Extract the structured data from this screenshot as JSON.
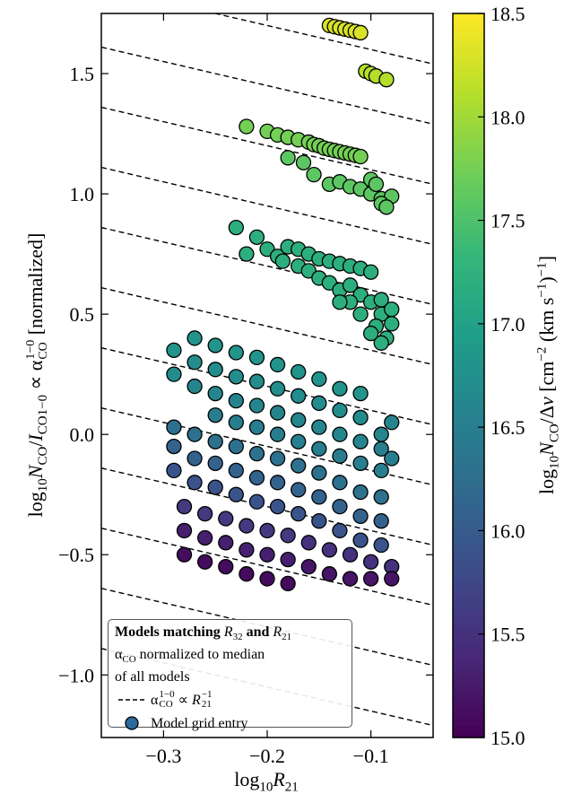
{
  "chart_data": {
    "type": "scatter",
    "xlabel": [
      "log",
      "10",
      "R",
      "21"
    ],
    "ylabel": [
      "log",
      "10",
      "N",
      "CO",
      "/",
      "I",
      "CO1−0",
      " ∝ ",
      "α",
      "1−0",
      "CO",
      " [normalized]"
    ],
    "colorbar_label": [
      "log",
      "10",
      "N",
      "CO",
      "/Δ",
      "v",
      " [cm",
      "−2",
      " (km s",
      "−1",
      ")",
      "−1",
      "]"
    ],
    "xlim": [
      -0.36,
      -0.04
    ],
    "ylim": [
      -1.26,
      1.75
    ],
    "xticks": [
      {
        "value": -0.3,
        "label": "−0.3"
      },
      {
        "value": -0.2,
        "label": "−0.2"
      },
      {
        "value": -0.1,
        "label": "−0.1"
      }
    ],
    "yticks": [
      {
        "value": -1.0,
        "label": "−1.0"
      },
      {
        "value": -0.5,
        "label": "−0.5"
      },
      {
        "value": 0.0,
        "label": "0.0"
      },
      0.5,
      {
        "value": 1.0,
        "label": "1.0"
      },
      1.5
    ],
    "clim": [
      15.0,
      18.5
    ],
    "cticks": [
      {
        "value": 15.0,
        "label": "15.0"
      },
      15.5,
      {
        "value": 16.0,
        "label": "16.0"
      },
      16.5,
      {
        "value": 17.0,
        "label": "17.0"
      },
      17.5,
      {
        "value": 18.0,
        "label": "18.0"
      },
      18.5
    ],
    "colormap": "viridis",
    "reference_lines": {
      "slope": -1,
      "intercepts": [
        1.5,
        1.25,
        1.0,
        0.75,
        0.5,
        0.25,
        0.0,
        -0.25,
        -0.5,
        -0.75,
        -1.0,
        -1.25
      ]
    },
    "legend": {
      "title": [
        "Models matching ",
        "R",
        "32",
        " and ",
        "R",
        "21"
      ],
      "note": [
        "α",
        "CO",
        " normalized to median",
        "of all models"
      ],
      "line_entry": [
        "α",
        "1−0",
        "CO",
        " ∝ ",
        "R",
        "21",
        "−1"
      ],
      "marker_entry": "Model grid entry",
      "marker_color": "#2b6a9c",
      "loc": "lower left"
    },
    "x": [
      -0.14,
      -0.135,
      -0.13,
      -0.125,
      -0.12,
      -0.115,
      -0.11,
      -0.105,
      -0.1,
      -0.095,
      -0.085,
      -0.22,
      -0.2,
      -0.19,
      -0.18,
      -0.17,
      -0.16,
      -0.155,
      -0.15,
      -0.145,
      -0.14,
      -0.135,
      -0.13,
      -0.125,
      -0.12,
      -0.115,
      -0.11,
      -0.18,
      -0.165,
      -0.155,
      -0.14,
      -0.13,
      -0.12,
      -0.11,
      -0.1,
      -0.09,
      -0.08,
      -0.09,
      -0.085,
      -0.1,
      -0.095,
      -0.23,
      -0.21,
      -0.22,
      -0.2,
      -0.19,
      -0.18,
      -0.17,
      -0.16,
      -0.15,
      -0.14,
      -0.13,
      -0.12,
      -0.11,
      -0.1,
      -0.185,
      -0.17,
      -0.16,
      -0.15,
      -0.14,
      -0.13,
      -0.12,
      -0.11,
      -0.1,
      -0.09,
      -0.095,
      -0.085,
      -0.09,
      -0.1,
      -0.11,
      -0.12,
      -0.08,
      -0.13,
      -0.09,
      -0.08,
      -0.29,
      -0.29,
      -0.27,
      -0.27,
      -0.27,
      -0.25,
      -0.25,
      -0.25,
      -0.25,
      -0.23,
      -0.23,
      -0.23,
      -0.23,
      -0.21,
      -0.21,
      -0.21,
      -0.21,
      -0.19,
      -0.19,
      -0.19,
      -0.19,
      -0.17,
      -0.17,
      -0.17,
      -0.17,
      -0.15,
      -0.15,
      -0.15,
      -0.15,
      -0.13,
      -0.13,
      -0.13,
      -0.13,
      -0.11,
      -0.11,
      -0.11,
      -0.11,
      -0.09,
      -0.09,
      -0.09,
      -0.08,
      -0.08,
      -0.29,
      -0.29,
      -0.29,
      -0.27,
      -0.27,
      -0.27,
      -0.25,
      -0.25,
      -0.25,
      -0.23,
      -0.23,
      -0.23,
      -0.21,
      -0.21,
      -0.21,
      -0.19,
      -0.19,
      -0.19,
      -0.17,
      -0.17,
      -0.17,
      -0.15,
      -0.15,
      -0.15,
      -0.13,
      -0.13,
      -0.13,
      -0.11,
      -0.11,
      -0.11,
      -0.09,
      -0.09,
      -0.09,
      -0.28,
      -0.28,
      -0.28,
      -0.26,
      -0.26,
      -0.26,
      -0.24,
      -0.24,
      -0.24,
      -0.22,
      -0.22,
      -0.22,
      -0.2,
      -0.2,
      -0.2,
      -0.18,
      -0.18,
      -0.18,
      -0.16,
      -0.16,
      -0.14,
      -0.14,
      -0.12,
      -0.12,
      -0.1,
      -0.1,
      -0.08,
      -0.08
    ],
    "y": [
      1.7,
      1.695,
      1.69,
      1.685,
      1.68,
      1.675,
      1.67,
      1.51,
      1.5,
      1.49,
      1.475,
      1.28,
      1.26,
      1.245,
      1.235,
      1.225,
      1.215,
      1.205,
      1.2,
      1.19,
      1.185,
      1.18,
      1.175,
      1.17,
      1.165,
      1.16,
      1.155,
      1.15,
      1.13,
      1.08,
      1.04,
      1.05,
      1.03,
      1.02,
      1.0,
      0.98,
      0.99,
      0.96,
      0.945,
      1.06,
      1.04,
      0.86,
      0.82,
      0.75,
      0.77,
      0.74,
      0.78,
      0.77,
      0.75,
      0.73,
      0.72,
      0.71,
      0.7,
      0.69,
      0.675,
      0.72,
      0.7,
      0.68,
      0.65,
      0.63,
      0.6,
      0.62,
      0.58,
      0.55,
      0.5,
      0.45,
      0.4,
      0.38,
      0.42,
      0.5,
      0.55,
      0.46,
      0.55,
      0.56,
      0.52,
      0.35,
      0.25,
      0.4,
      0.3,
      0.2,
      0.37,
      0.27,
      0.17,
      0.08,
      0.34,
      0.24,
      0.14,
      0.05,
      0.32,
      0.22,
      0.12,
      0.03,
      0.29,
      0.19,
      0.09,
      0.0,
      0.26,
      0.16,
      0.06,
      -0.03,
      0.23,
      0.13,
      0.03,
      -0.06,
      0.19,
      0.1,
      0.0,
      -0.09,
      0.17,
      0.07,
      -0.03,
      -0.12,
      0.0,
      -0.06,
      -0.15,
      0.05,
      -0.1,
      0.03,
      -0.05,
      -0.15,
      0.0,
      -0.1,
      -0.2,
      -0.03,
      -0.12,
      -0.22,
      -0.05,
      -0.15,
      -0.25,
      -0.08,
      -0.18,
      -0.28,
      -0.1,
      -0.2,
      -0.3,
      -0.13,
      -0.23,
      -0.33,
      -0.16,
      -0.26,
      -0.36,
      -0.2,
      -0.3,
      -0.4,
      -0.24,
      -0.34,
      -0.44,
      -0.26,
      -0.36,
      -0.46,
      -0.3,
      -0.4,
      -0.5,
      -0.33,
      -0.43,
      -0.53,
      -0.35,
      -0.45,
      -0.55,
      -0.38,
      -0.48,
      -0.58,
      -0.4,
      -0.5,
      -0.6,
      -0.42,
      -0.52,
      -0.62,
      -0.45,
      -0.55,
      -0.48,
      -0.58,
      -0.5,
      -0.6,
      -0.53,
      -0.6,
      -0.55,
      -0.6
    ],
    "c": [
      18.3,
      18.3,
      18.3,
      18.3,
      18.3,
      18.3,
      18.3,
      18.1,
      18.1,
      18.1,
      18.1,
      17.75,
      17.75,
      17.75,
      17.75,
      17.75,
      17.75,
      17.75,
      17.75,
      17.75,
      17.75,
      17.75,
      17.75,
      17.75,
      17.75,
      17.75,
      17.75,
      17.6,
      17.6,
      17.6,
      17.6,
      17.6,
      17.6,
      17.6,
      17.6,
      17.6,
      17.6,
      17.6,
      17.6,
      17.6,
      17.6,
      17.2,
      17.2,
      17.2,
      17.2,
      17.2,
      17.2,
      17.2,
      17.2,
      17.2,
      17.2,
      17.2,
      17.2,
      17.2,
      17.2,
      17.2,
      17.2,
      17.2,
      17.2,
      17.2,
      17.2,
      17.2,
      17.2,
      17.2,
      17.2,
      17.2,
      17.2,
      17.2,
      17.2,
      17.2,
      17.2,
      17.2,
      17.2,
      17.2,
      17.2,
      16.8,
      16.7,
      16.8,
      16.7,
      16.6,
      16.8,
      16.7,
      16.6,
      16.5,
      16.8,
      16.7,
      16.6,
      16.5,
      16.8,
      16.7,
      16.6,
      16.5,
      16.8,
      16.7,
      16.6,
      16.5,
      16.8,
      16.7,
      16.6,
      16.5,
      16.8,
      16.7,
      16.6,
      16.5,
      16.8,
      16.7,
      16.6,
      16.5,
      16.8,
      16.7,
      16.6,
      16.5,
      16.6,
      16.5,
      16.5,
      16.6,
      16.5,
      16.3,
      16.1,
      15.9,
      16.3,
      16.1,
      15.9,
      16.3,
      16.1,
      15.9,
      16.3,
      16.1,
      15.9,
      16.3,
      16.1,
      15.9,
      16.3,
      16.1,
      15.9,
      16.3,
      16.1,
      15.9,
      16.3,
      16.1,
      15.9,
      16.3,
      16.1,
      15.9,
      16.3,
      16.1,
      15.9,
      16.3,
      16.1,
      15.9,
      15.6,
      15.3,
      15.1,
      15.6,
      15.3,
      15.1,
      15.6,
      15.3,
      15.1,
      15.6,
      15.3,
      15.1,
      15.6,
      15.3,
      15.1,
      15.6,
      15.3,
      15.1,
      15.5,
      15.2,
      15.5,
      15.2,
      15.5,
      15.2,
      15.5,
      15.2,
      15.5,
      15.2
    ]
  }
}
